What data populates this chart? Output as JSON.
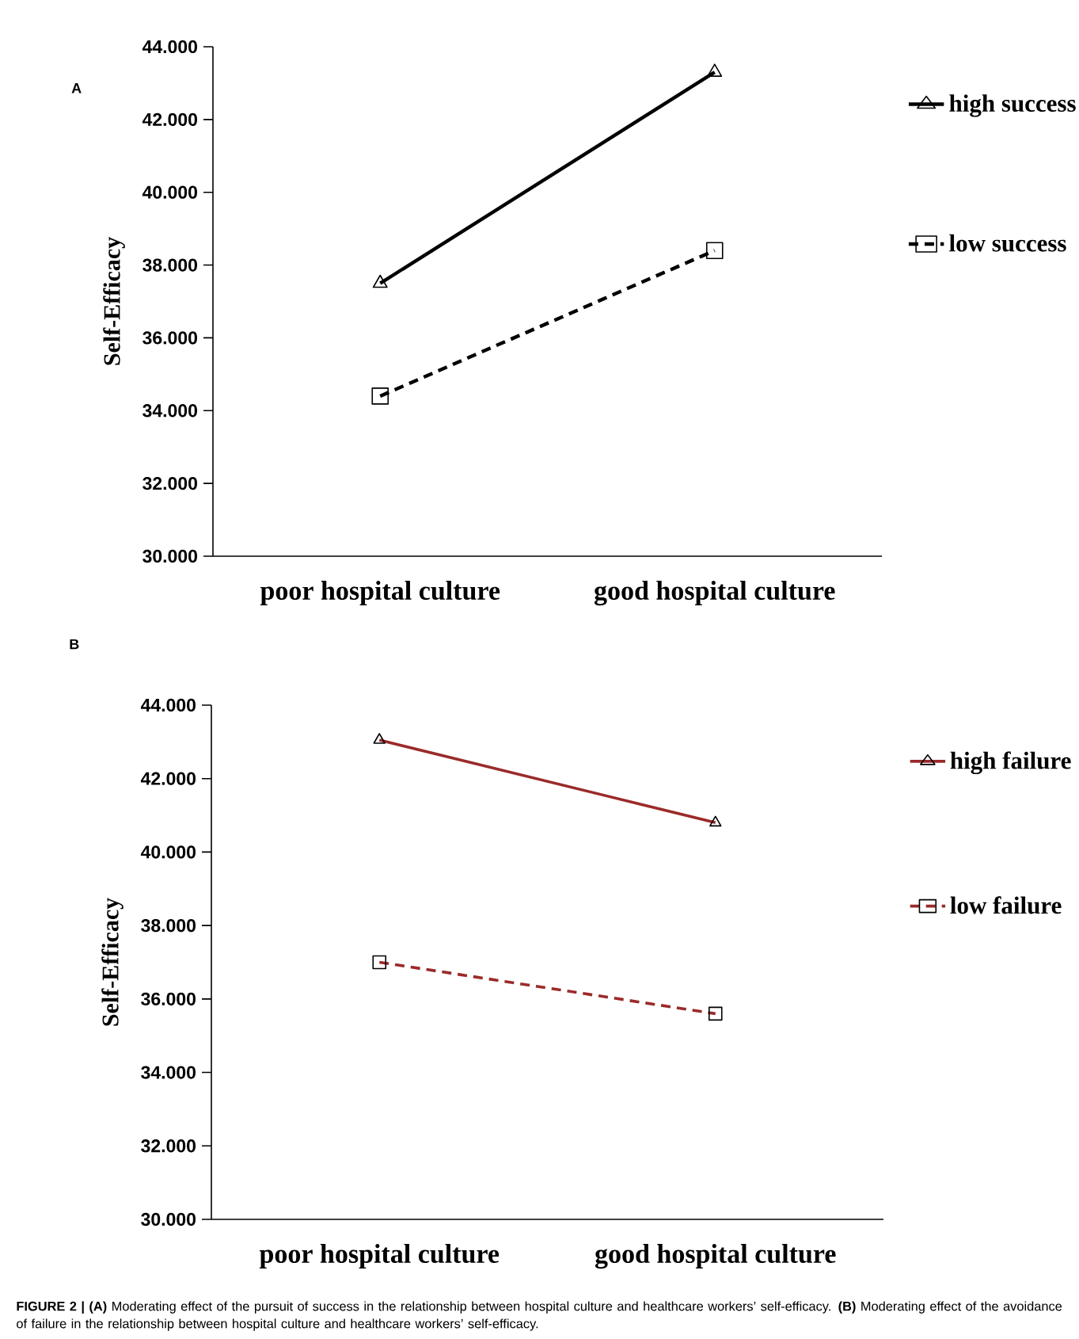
{
  "chart_data": [
    {
      "type": "line",
      "title": "A",
      "ylabel": "Self-Efficacy",
      "categories": [
        "poor hospital culture",
        "good hospital culture"
      ],
      "ylim": [
        30,
        44
      ],
      "yticks": [
        {
          "value": 30,
          "label": "30.000"
        },
        {
          "value": 32,
          "label": "32.000"
        },
        {
          "value": 34,
          "label": "34.000"
        },
        {
          "value": 36,
          "label": "36.000"
        },
        {
          "value": 38,
          "label": "38.000"
        },
        {
          "value": 40,
          "label": "40.000"
        },
        {
          "value": 42,
          "label": "42.000"
        },
        {
          "value": 44,
          "label": "44.000"
        }
      ],
      "legend": "right",
      "grid": false,
      "series": [
        {
          "name": "high success",
          "color": "#000000",
          "values": [
            37.5,
            43.3
          ],
          "marker": "triangle",
          "line_style": "solid"
        },
        {
          "name": "low success",
          "color": "#000000",
          "values": [
            34.4,
            38.4
          ],
          "marker": "square",
          "line_style": "dashed"
        }
      ]
    },
    {
      "type": "line",
      "title": "B",
      "ylabel": "Self-Efficacy",
      "categories": [
        "poor hospital culture",
        "good hospital culture"
      ],
      "ylim": [
        30,
        44
      ],
      "yticks": [
        {
          "value": 30,
          "label": "30.000"
        },
        {
          "value": 32,
          "label": "32.000"
        },
        {
          "value": 34,
          "label": "34.000"
        },
        {
          "value": 36,
          "label": "36.000"
        },
        {
          "value": 38,
          "label": "38.000"
        },
        {
          "value": 40,
          "label": "40.000"
        },
        {
          "value": 42,
          "label": "42.000"
        },
        {
          "value": 44,
          "label": "44.000"
        }
      ],
      "legend": "right",
      "grid": false,
      "annotations": [
        "**FIGURE 2 | (A)** Moderating effect of the pursuit of success in the relationship between hospital culture and healthcare workers’ self-efficacy. **(B)** Moderating effect of the avoidance of failure in the relationship between hospital culture and healthcare workers’ self-efficacy."
      ],
      "series": [
        {
          "name": "high failure",
          "color": "#9b2a2a",
          "values": [
            43.05,
            40.8
          ],
          "marker": "triangle",
          "line_style": "solid"
        },
        {
          "name": "low failure",
          "color": "#9b2a2a",
          "values": [
            37.0,
            35.6
          ],
          "marker": "square",
          "line_style": "dashed"
        }
      ]
    }
  ]
}
